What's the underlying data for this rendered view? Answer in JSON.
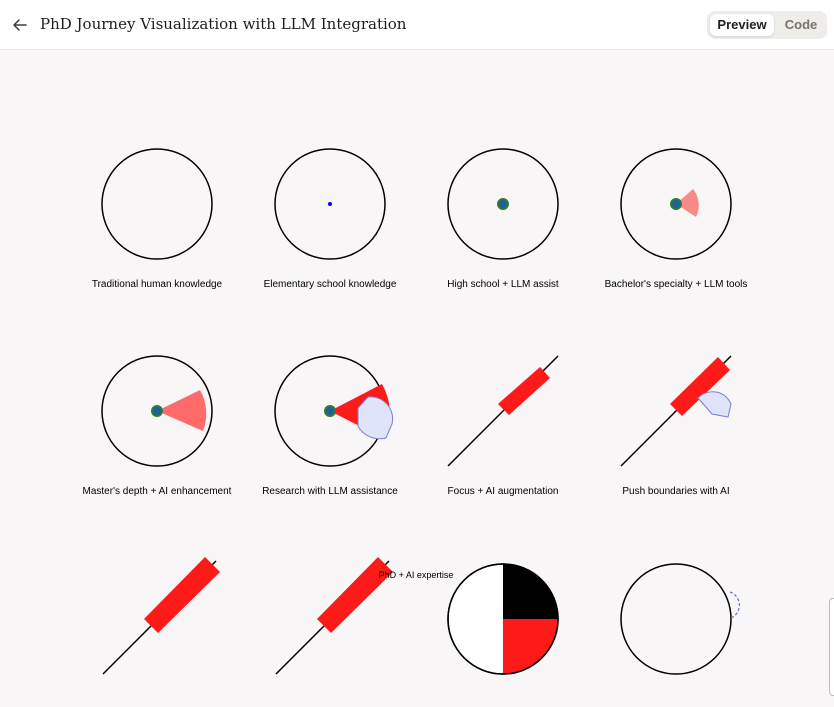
{
  "header": {
    "title": "PhD Journey Visualization with LLM Integration",
    "back_icon": "arrow-left-icon",
    "tabs": {
      "preview": "Preview",
      "code": "Code"
    },
    "active_tab": "preview"
  },
  "panels": [
    {
      "caption": "Traditional human knowledge"
    },
    {
      "caption": "Elementary school knowledge"
    },
    {
      "caption": "High school + LLM assist"
    },
    {
      "caption": "Bachelor's specialty + LLM tools"
    },
    {
      "caption": "Master's depth + AI enhancement"
    },
    {
      "caption": "Research with LLM assistance"
    },
    {
      "caption": "Focus + AI augmentation"
    },
    {
      "caption": "Push boundaries with AI"
    },
    {
      "caption": ""
    },
    {
      "caption": ""
    },
    {
      "caption": "PhD + AI expertise"
    },
    {
      "caption": ""
    }
  ],
  "colors": {
    "circle_stroke": "#000000",
    "dot_fill": "#1f5f9e",
    "dot_stroke": "#2e7d32",
    "blue_dot": "#0000ff",
    "wedge_light": "#f88a8a",
    "wedge_medium": "#ff6b6b",
    "bar_red": "#ff1a1a",
    "blob_fill": "#e0e4f8",
    "blob_stroke": "#7b80d0",
    "dashed_arc": "#6a6ae0"
  }
}
